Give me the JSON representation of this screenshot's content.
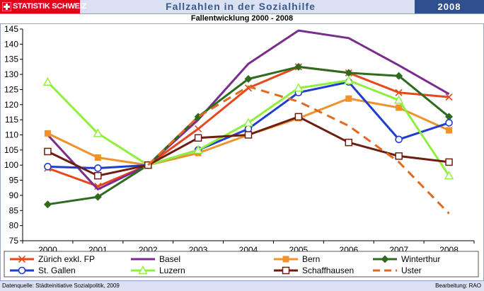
{
  "header": {
    "logo_text": "STATISTIK SCHWEIZ",
    "title": "Fallzahlen in der Sozialhilfe",
    "year": "2008"
  },
  "colors": {
    "banner": "#d9e1f2",
    "logo": "#e3001b",
    "year_box": "#2f4f8f",
    "title_text": "#3a5a8c"
  },
  "chart_data": {
    "type": "line",
    "title": "Fallentwicklung 2000 - 2008",
    "xlabel": "",
    "ylabel": "",
    "x": [
      "2000",
      "2001",
      "2002",
      "2003",
      "2004",
      "2005",
      "2006",
      "2007",
      "2008"
    ],
    "ylim": [
      75,
      145
    ],
    "yticks": [
      75,
      80,
      85,
      90,
      95,
      100,
      105,
      110,
      115,
      120,
      125,
      130,
      135,
      140,
      145
    ],
    "grid": false,
    "legend_position": "bottom",
    "series": [
      {
        "name": "Zürich exkl. FP",
        "color": "#e8471c",
        "marker": "x",
        "dash": false,
        "values": [
          99,
          93,
          100,
          112,
          125.5,
          132.5,
          130.5,
          124,
          122.5
        ]
      },
      {
        "name": "Basel",
        "color": "#7b2d8e",
        "marker": "none",
        "dash": false,
        "values": [
          110,
          92,
          100,
          115,
          133.5,
          144.5,
          142,
          133,
          123.5
        ]
      },
      {
        "name": "Bern",
        "color": "#f0922b",
        "marker": "square",
        "dash": false,
        "values": [
          110.5,
          102.5,
          100,
          104,
          110,
          115.5,
          122,
          119,
          111.5
        ]
      },
      {
        "name": "Winterthur",
        "color": "#2f6b1f",
        "marker": "diamond",
        "dash": false,
        "values": [
          87,
          89.5,
          100,
          116,
          128.5,
          132.5,
          130.5,
          129.5,
          116
        ]
      },
      {
        "name": "St. Gallen",
        "color": "#1f3ed1",
        "marker": "circle",
        "dash": false,
        "values": [
          99.5,
          99,
          100,
          105,
          112,
          124,
          127.5,
          108.5,
          114
        ]
      },
      {
        "name": "Luzern",
        "color": "#8ef03a",
        "marker": "triangle",
        "dash": false,
        "values": [
          127.5,
          110.5,
          100,
          105,
          114,
          125.5,
          128,
          121.5,
          96.5
        ]
      },
      {
        "name": "Schaffhausen",
        "color": "#6e1e10",
        "marker": "opensquare",
        "dash": false,
        "values": [
          104.5,
          96.5,
          100,
          109,
          110,
          116,
          107.5,
          103,
          101
        ]
      },
      {
        "name": "Uster",
        "color": "#e06a1f",
        "marker": "none",
        "dash": true,
        "values": [
          null,
          null,
          100,
          116,
          126,
          121,
          113,
          101,
          84
        ]
      }
    ]
  },
  "footer": {
    "source": "Datenquelle: Städteinitiative Sozialpolitik, 2009",
    "credit": "Bearbeitung: RAO"
  }
}
